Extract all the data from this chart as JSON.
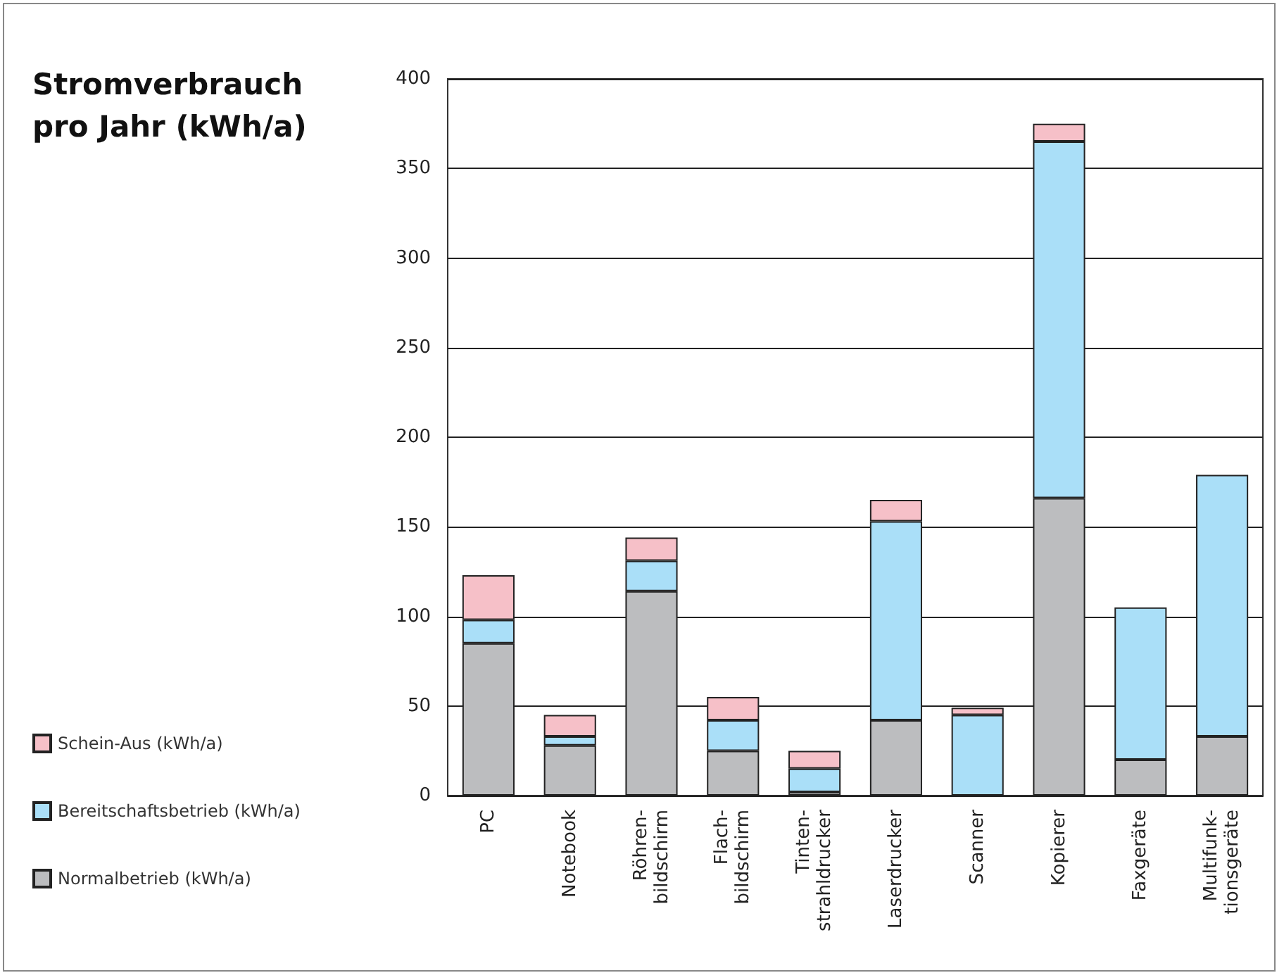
{
  "chart_data": {
    "type": "bar",
    "title": "Stromverbrauch\npro Jahr (kWh/a)",
    "categories": [
      "PC",
      "Notebook",
      "Röhren-\nbildschirm",
      "Flach-\nbildschirm",
      "Tinten-\nstrahldrucker",
      "Laserdrucker",
      "Scanner",
      "Kopierer",
      "Faxgeräte",
      "Multifunk-\ntionsgeräte"
    ],
    "stacked": true,
    "series": [
      {
        "name": "Normalbetrieb (kWh/a)",
        "color": "#bcbdbf",
        "values": [
          85,
          28,
          114,
          25,
          2,
          42,
          0,
          166,
          20,
          33
        ]
      },
      {
        "name": "Bereitschaftsbetrieb (kWh/a)",
        "color": "#aadff8",
        "values": [
          13,
          5,
          17,
          17,
          13,
          111,
          45,
          199,
          85,
          146
        ]
      },
      {
        "name": "Schein-Aus (kWh/a)",
        "color": "#f6c0c8",
        "values": [
          25,
          12,
          13,
          13,
          10,
          12,
          4,
          10,
          null,
          null
        ]
      }
    ],
    "ylim": [
      0,
      400
    ],
    "yticks": [
      0,
      50,
      100,
      150,
      200,
      250,
      300,
      350,
      400
    ],
    "grid": "y",
    "legend": "bottom left"
  }
}
